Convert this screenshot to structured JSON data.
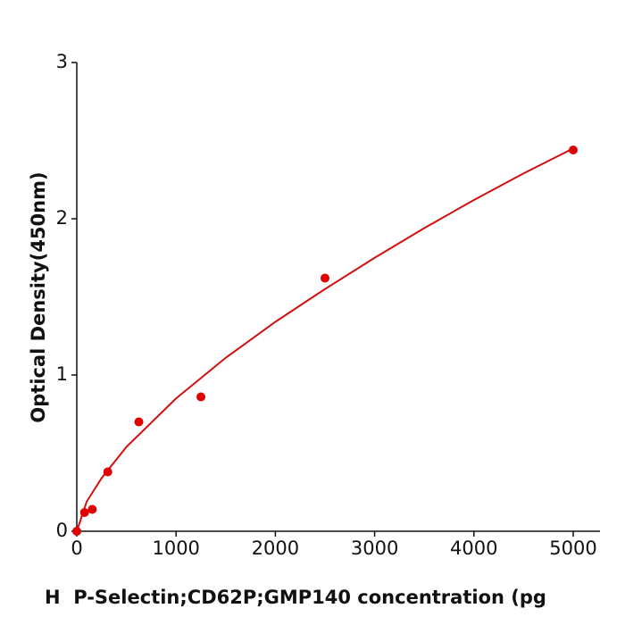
{
  "chart_data": {
    "type": "scatter",
    "x_label": "H  P-Selectin;CD62P;GMP140 concentration (pg",
    "y_label": "Optical Density(450nm)",
    "xlim": [
      0,
      5270
    ],
    "ylim": [
      0,
      3
    ],
    "xticks": [
      0,
      1000,
      2000,
      3000,
      4000,
      5000
    ],
    "yticks": [
      0,
      1,
      2,
      3
    ],
    "series": [
      {
        "type": "scatter",
        "color": "#e00000",
        "x": [
          0,
          78,
          156,
          312,
          625,
          1250,
          2500,
          5000
        ],
        "values": [
          0,
          0.12,
          0.14,
          0.38,
          0.7,
          0.86,
          1.62,
          2.44
        ]
      },
      {
        "type": "line",
        "color": "#d01010",
        "x": [
          0,
          100,
          250,
          500,
          1000,
          1500,
          2000,
          2500,
          3000,
          3500,
          4000,
          4500,
          5000
        ],
        "values": [
          0,
          0.19,
          0.34,
          0.54,
          0.85,
          1.11,
          1.34,
          1.55,
          1.75,
          1.94,
          2.12,
          2.29,
          2.45
        ]
      }
    ]
  }
}
